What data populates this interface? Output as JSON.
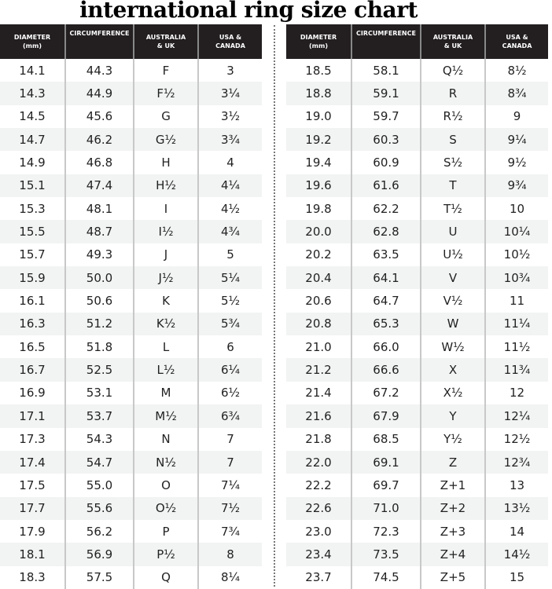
{
  "title": "international ring size chart",
  "headers": {
    "diameter": "DIAMETER",
    "diameter_unit": "(mm)",
    "circumference": "CIRCUMFERENCE",
    "au_uk_1": "AUSTRALIA",
    "au_uk_2": "& UK",
    "usa_1": "USA &",
    "usa_2": "CANADA"
  },
  "left_rows": [
    [
      "14.1",
      "44.3",
      "F",
      "3"
    ],
    [
      "14.3",
      "44.9",
      "F½",
      "3¼"
    ],
    [
      "14.5",
      "45.6",
      "G",
      "3½"
    ],
    [
      "14.7",
      "46.2",
      "G½",
      "3¾"
    ],
    [
      "14.9",
      "46.8",
      "H",
      "4"
    ],
    [
      "15.1",
      "47.4",
      "H½",
      "4¼"
    ],
    [
      "15.3",
      "48.1",
      "I",
      "4½"
    ],
    [
      "15.5",
      "48.7",
      "I½",
      "4¾"
    ],
    [
      "15.7",
      "49.3",
      "J",
      "5"
    ],
    [
      "15.9",
      "50.0",
      "J½",
      "5¼"
    ],
    [
      "16.1",
      "50.6",
      "K",
      "5½"
    ],
    [
      "16.3",
      "51.2",
      "K½",
      "5¾"
    ],
    [
      "16.5",
      "51.8",
      "L",
      "6"
    ],
    [
      "16.7",
      "52.5",
      "L½",
      "6¼"
    ],
    [
      "16.9",
      "53.1",
      "M",
      "6½"
    ],
    [
      "17.1",
      "53.7",
      "M½",
      "6¾"
    ],
    [
      "17.3",
      "54.3",
      "N",
      "7"
    ],
    [
      "17.4",
      "54.7",
      "N½",
      "7"
    ],
    [
      "17.5",
      "55.0",
      "O",
      "7¼"
    ],
    [
      "17.7",
      "55.6",
      "O½",
      "7½"
    ],
    [
      "17.9",
      "56.2",
      "P",
      "7¾"
    ],
    [
      "18.1",
      "56.9",
      "P½",
      "8"
    ],
    [
      "18.3",
      "57.5",
      "Q",
      "8¼"
    ]
  ],
  "right_rows": [
    [
      "18.5",
      "58.1",
      "Q½",
      "8½"
    ],
    [
      "18.8",
      "59.1",
      "R",
      "8¾"
    ],
    [
      "19.0",
      "59.7",
      "R½",
      "9"
    ],
    [
      "19.2",
      "60.3",
      "S",
      "9¼"
    ],
    [
      "19.4",
      "60.9",
      "S½",
      "9½"
    ],
    [
      "19.6",
      "61.6",
      "T",
      "9¾"
    ],
    [
      "19.8",
      "62.2",
      "T½",
      "10"
    ],
    [
      "20.0",
      "62.8",
      "U",
      "10¼"
    ],
    [
      "20.2",
      "63.5",
      "U½",
      "10½"
    ],
    [
      "20.4",
      "64.1",
      "V",
      "10¾"
    ],
    [
      "20.6",
      "64.7",
      "V½",
      "11"
    ],
    [
      "20.8",
      "65.3",
      "W",
      "11¼"
    ],
    [
      "21.0",
      "66.0",
      "W½",
      "11½"
    ],
    [
      "21.2",
      "66.6",
      "X",
      "11¾"
    ],
    [
      "21.4",
      "67.2",
      "X½",
      "12"
    ],
    [
      "21.6",
      "67.9",
      "Y",
      "12¼"
    ],
    [
      "21.8",
      "68.5",
      "Y½",
      "12½"
    ],
    [
      "22.0",
      "69.1",
      "Z",
      "12¾"
    ],
    [
      "22.2",
      "69.7",
      "Z+1",
      "13"
    ],
    [
      "22.6",
      "71.0",
      "Z+2",
      "13½"
    ],
    [
      "23.0",
      "72.3",
      "Z+3",
      "14"
    ],
    [
      "23.4",
      "73.5",
      "Z+4",
      "14½"
    ],
    [
      "23.7",
      "74.5",
      "Z+5",
      "15"
    ]
  ]
}
